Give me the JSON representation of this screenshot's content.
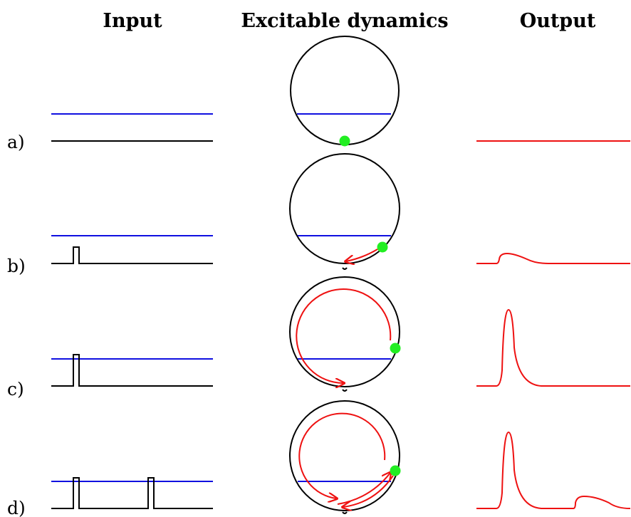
{
  "headers": {
    "input": "Input",
    "dynamics": "Excitable dynamics",
    "output": "Output"
  },
  "rows": [
    {
      "label": "a)"
    },
    {
      "label": "b)"
    },
    {
      "label": "c)"
    },
    {
      "label": "d)"
    }
  ],
  "colors": {
    "input_signal": "#000000",
    "threshold": "#1010e0",
    "trajectory": "#ee1111",
    "state_dot": "#22ee22",
    "output_signal": "#ee1111"
  }
}
